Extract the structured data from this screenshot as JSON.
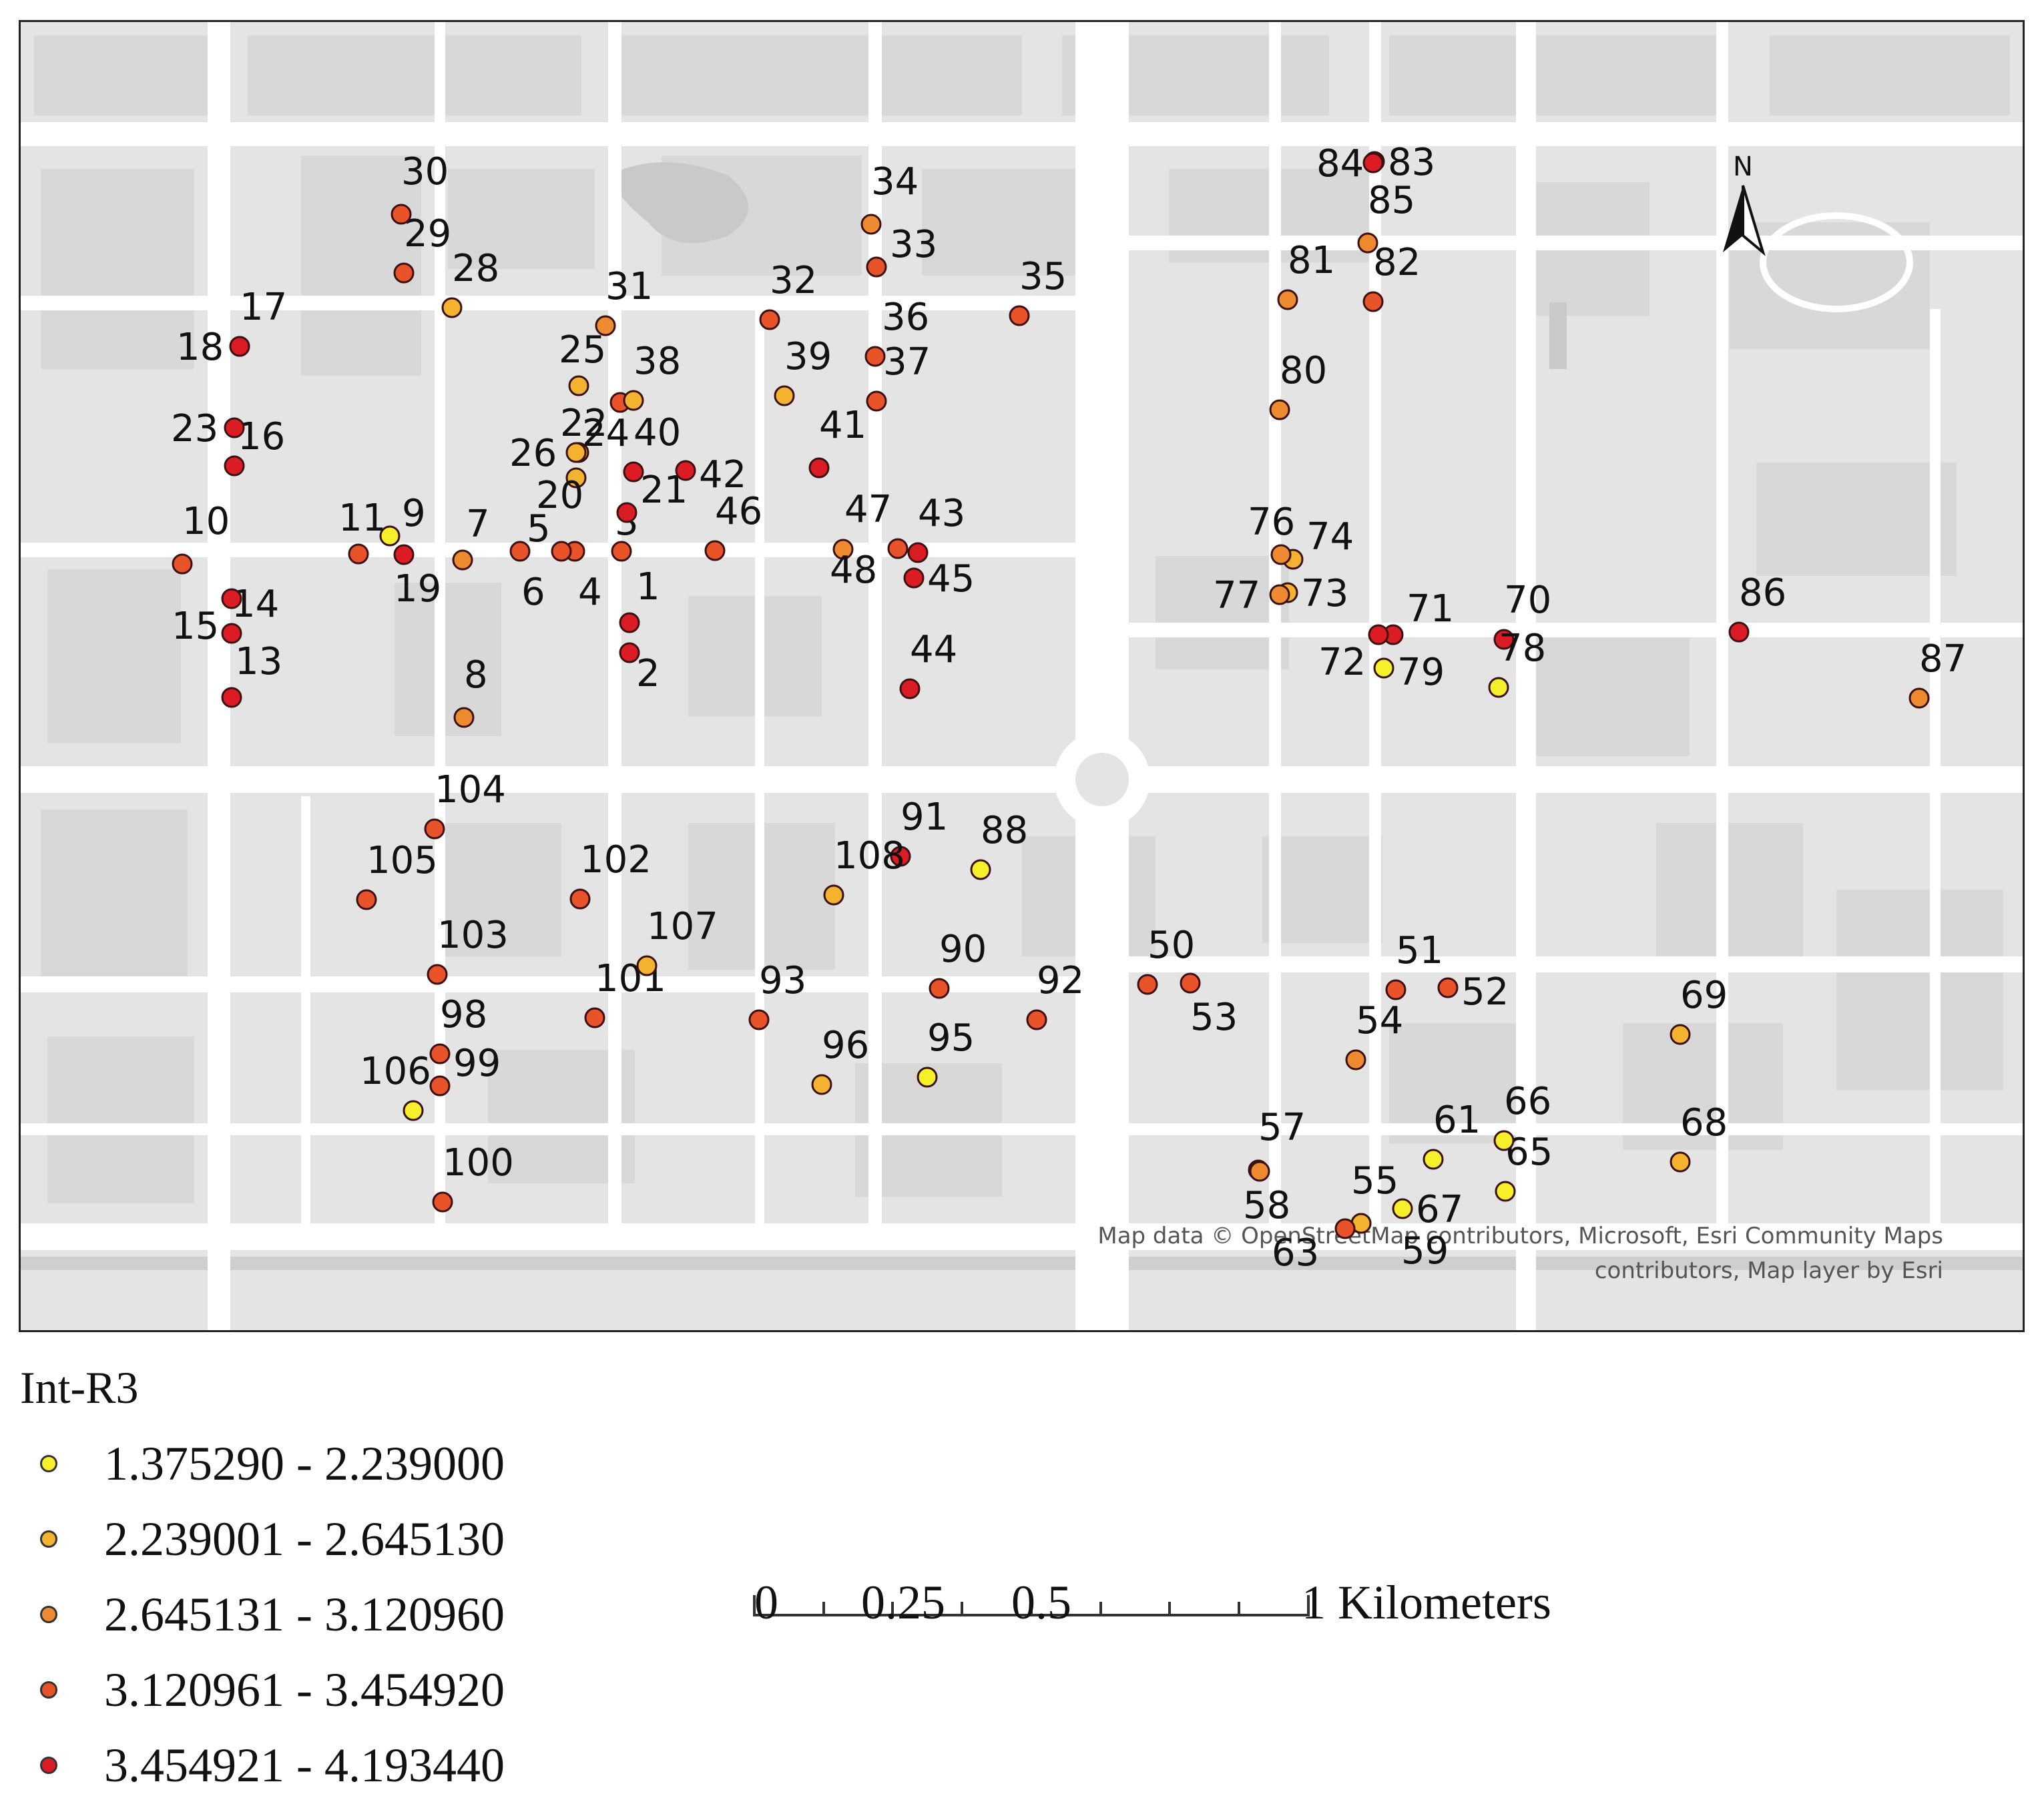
{
  "map": {
    "attribution_line1": "Map data © OpenStreetMap contributors, Microsoft, Esri Community Maps",
    "attribution_line2": "contributors, Map layer by Esri",
    "north_label": "N",
    "colors": {
      "background": "#e4e4e4",
      "road": "#ffffff",
      "block": "#d9d9d9",
      "water": "#c9c9c9"
    }
  },
  "legend": {
    "title": "Int-R3",
    "classes": [
      {
        "label": "1.375290 - 2.239000",
        "color": "#f5f02a"
      },
      {
        "label": "2.239001 - 2.645130",
        "color": "#f4b32e"
      },
      {
        "label": "2.645131 - 3.120960",
        "color": "#ee8a30"
      },
      {
        "label": "3.120961 - 3.454920",
        "color": "#e8532a"
      },
      {
        "label": "3.454921 - 4.193440",
        "color": "#dc1c24"
      }
    ]
  },
  "scale": {
    "ticks": [
      "0",
      "0.25",
      "0.5",
      "1 Kilometers"
    ]
  },
  "points": [
    {
      "id": "1",
      "c": 4
    },
    {
      "id": "2",
      "c": 4
    },
    {
      "id": "3",
      "c": 3
    },
    {
      "id": "4",
      "c": 3
    },
    {
      "id": "5",
      "c": 3
    },
    {
      "id": "6",
      "c": 3
    },
    {
      "id": "7",
      "c": 2
    },
    {
      "id": "8",
      "c": 2
    },
    {
      "id": "9",
      "c": 0
    },
    {
      "id": "10",
      "c": 3
    },
    {
      "id": "11",
      "c": 3
    },
    {
      "id": "13",
      "c": 4
    },
    {
      "id": "14",
      "c": 4
    },
    {
      "id": "15",
      "c": 4
    },
    {
      "id": "16",
      "c": 4
    },
    {
      "id": "17",
      "c": 4
    },
    {
      "id": "18",
      "c": 4
    },
    {
      "id": "19",
      "c": 4
    },
    {
      "id": "20",
      "c": 1
    },
    {
      "id": "21",
      "c": 4
    },
    {
      "id": "22",
      "c": 3
    },
    {
      "id": "23",
      "c": 4
    },
    {
      "id": "24",
      "c": 1
    },
    {
      "id": "25",
      "c": 1
    },
    {
      "id": "26",
      "c": 1
    },
    {
      "id": "28",
      "c": 1
    },
    {
      "id": "29",
      "c": 3
    },
    {
      "id": "30",
      "c": 3
    },
    {
      "id": "31",
      "c": 2
    },
    {
      "id": "32",
      "c": 3
    },
    {
      "id": "33",
      "c": 3
    },
    {
      "id": "34",
      "c": 2
    },
    {
      "id": "35",
      "c": 3
    },
    {
      "id": "36",
      "c": 3
    },
    {
      "id": "37",
      "c": 3
    },
    {
      "id": "38",
      "c": 1
    },
    {
      "id": "39",
      "c": 1
    },
    {
      "id": "40",
      "c": 4
    },
    {
      "id": "41",
      "c": 4
    },
    {
      "id": "42",
      "c": 4
    },
    {
      "id": "43",
      "c": 4
    },
    {
      "id": "44",
      "c": 4
    },
    {
      "id": "45",
      "c": 4
    },
    {
      "id": "46",
      "c": 3
    },
    {
      "id": "47",
      "c": 3
    },
    {
      "id": "48",
      "c": 2
    },
    {
      "id": "50",
      "c": 3
    },
    {
      "id": "51",
      "c": 3
    },
    {
      "id": "52",
      "c": 3
    },
    {
      "id": "53",
      "c": 3
    },
    {
      "id": "54",
      "c": 2
    },
    {
      "id": "55",
      "c": 2
    },
    {
      "id": "57",
      "c": 2
    },
    {
      "id": "58",
      "c": 2
    },
    {
      "id": "59",
      "c": 1
    },
    {
      "id": "61",
      "c": 0
    },
    {
      "id": "63",
      "c": 3
    },
    {
      "id": "65",
      "c": 0
    },
    {
      "id": "66",
      "c": 0
    },
    {
      "id": "67",
      "c": 0
    },
    {
      "id": "68",
      "c": 1
    },
    {
      "id": "69",
      "c": 1
    },
    {
      "id": "70",
      "c": 4
    },
    {
      "id": "71",
      "c": 4
    },
    {
      "id": "72",
      "c": 4
    },
    {
      "id": "73",
      "c": 1
    },
    {
      "id": "74",
      "c": 1
    },
    {
      "id": "76",
      "c": 2
    },
    {
      "id": "77",
      "c": 2
    },
    {
      "id": "78",
      "c": 0
    },
    {
      "id": "79",
      "c": 0
    },
    {
      "id": "80",
      "c": 2
    },
    {
      "id": "81",
      "c": 2
    },
    {
      "id": "82",
      "c": 3
    },
    {
      "id": "83",
      "c": 3
    },
    {
      "id": "84",
      "c": 4
    },
    {
      "id": "85",
      "c": 2
    },
    {
      "id": "86",
      "c": 4
    },
    {
      "id": "87",
      "c": 2
    },
    {
      "id": "88",
      "c": 0
    },
    {
      "id": "90",
      "c": 3
    },
    {
      "id": "91",
      "c": 4
    },
    {
      "id": "92",
      "c": 3
    },
    {
      "id": "93",
      "c": 3
    },
    {
      "id": "95",
      "c": 0
    },
    {
      "id": "96",
      "c": 1
    },
    {
      "id": "98",
      "c": 3
    },
    {
      "id": "99",
      "c": 3
    },
    {
      "id": "100",
      "c": 3
    },
    {
      "id": "101",
      "c": 3
    },
    {
      "id": "102",
      "c": 3
    },
    {
      "id": "103",
      "c": 3
    },
    {
      "id": "104",
      "c": 3
    },
    {
      "id": "105",
      "c": 3
    },
    {
      "id": "106",
      "c": 0
    },
    {
      "id": "107",
      "c": 1
    },
    {
      "id": "108",
      "c": 1
    }
  ]
}
